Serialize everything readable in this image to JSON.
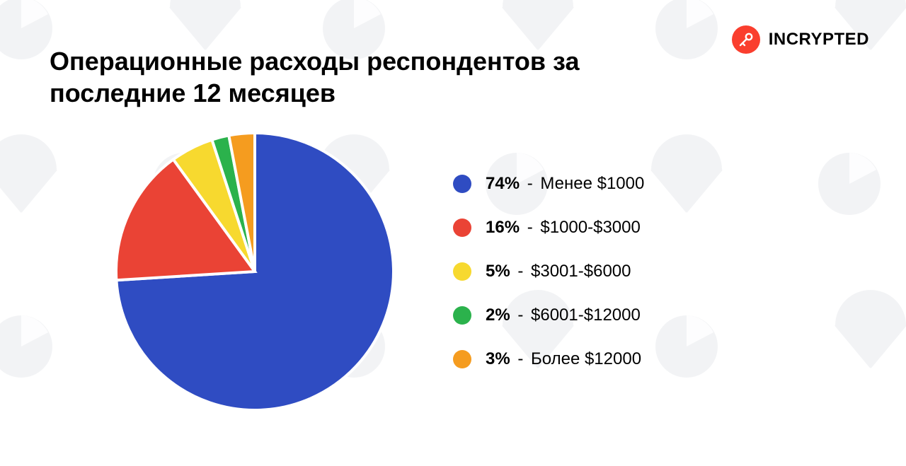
{
  "brand": {
    "label": "INCRYPTED",
    "icon_bg": "#fa3e2e"
  },
  "title": "Операционные расходы респондентов за последние 12 месяцев",
  "chart": {
    "type": "pie",
    "background_color": "#ffffff",
    "radius": 196,
    "gap_color": "#ffffff",
    "gap_width": 4,
    "start_angle_deg": -90,
    "slices": [
      {
        "value": 74,
        "label": "Менее $1000",
        "color": "#2f4cc2",
        "percent_label": "74%"
      },
      {
        "value": 16,
        "label": "$1000-$3000",
        "color": "#ea4335",
        "percent_label": "16%"
      },
      {
        "value": 5,
        "label": "$3001-$6000",
        "color": "#f7d92f",
        "percent_label": "5%"
      },
      {
        "value": 2,
        "label": "$6001-$12000",
        "color": "#2bb24c",
        "percent_label": "2%"
      },
      {
        "value": 3,
        "label": "Более $12000",
        "color": "#f59c1f",
        "percent_label": "3%"
      }
    ],
    "legend": {
      "swatch_radius": 13,
      "text_fontsize": 24,
      "percent_fontweight": 800,
      "text_color": "#000000",
      "separator": "-"
    }
  },
  "title_style": {
    "fontsize": 36,
    "fontweight": 800,
    "color": "#000000"
  }
}
